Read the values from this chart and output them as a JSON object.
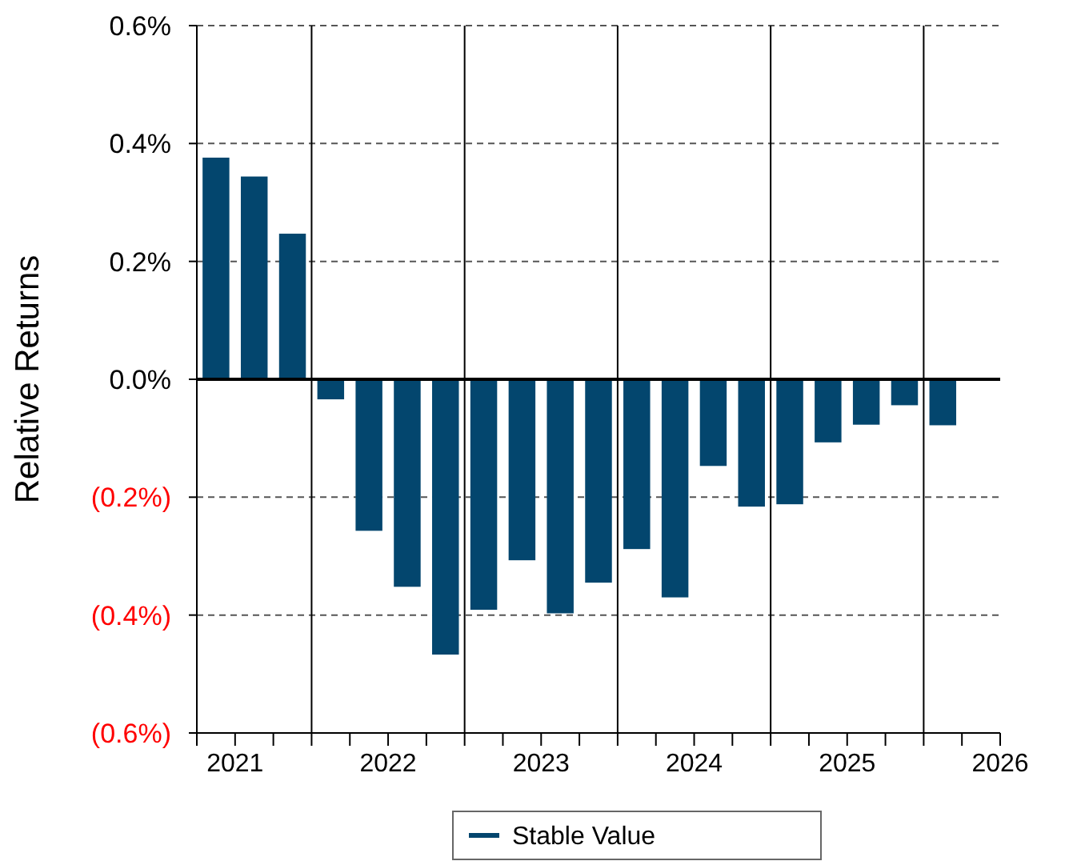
{
  "chart_data": {
    "type": "bar",
    "ylabel": "Relative Returns",
    "x": [
      2021.375,
      2021.625,
      2021.875,
      2022.125,
      2022.375,
      2022.625,
      2022.875,
      2023.125,
      2023.375,
      2023.625,
      2023.875,
      2024.125,
      2024.375,
      2024.625,
      2024.875,
      2025.125,
      2025.375,
      2025.625,
      2025.875,
      2026.125
    ],
    "series": [
      {
        "name": "Stable Value",
        "color": "#03466e",
        "values": [
          0.376,
          0.344,
          0.247,
          -0.034,
          -0.257,
          -0.352,
          -0.467,
          -0.391,
          -0.307,
          -0.397,
          -0.345,
          -0.288,
          -0.37,
          -0.147,
          -0.216,
          -0.212,
          -0.107,
          -0.077,
          -0.044,
          -0.078
        ]
      }
    ],
    "xlim": [
      2021.25,
      2026.5
    ],
    "xticks": [
      {
        "value": 2021.25,
        "label": null
      },
      {
        "value": 2021.5,
        "label": "2021"
      },
      {
        "value": 2021.75,
        "label": null
      },
      {
        "value": 2022,
        "label": null
      },
      {
        "value": 2022.25,
        "label": null
      },
      {
        "value": 2022.5,
        "label": "2022"
      },
      {
        "value": 2022.75,
        "label": null
      },
      {
        "value": 2023,
        "label": null
      },
      {
        "value": 2023.25,
        "label": null
      },
      {
        "value": 2023.5,
        "label": "2023"
      },
      {
        "value": 2023.75,
        "label": null
      },
      {
        "value": 2024,
        "label": null
      },
      {
        "value": 2024.25,
        "label": null
      },
      {
        "value": 2024.5,
        "label": "2024"
      },
      {
        "value": 2024.75,
        "label": null
      },
      {
        "value": 2025,
        "label": null
      },
      {
        "value": 2025.25,
        "label": null
      },
      {
        "value": 2025.5,
        "label": "2025"
      },
      {
        "value": 2025.75,
        "label": null
      },
      {
        "value": 2026,
        "label": null
      },
      {
        "value": 2026.25,
        "label": null
      },
      {
        "value": 2026.5,
        "label": "2026"
      }
    ],
    "ylim": [
      -0.6,
      0.6
    ],
    "yticks": [
      {
        "value": -0.6,
        "label": "(0.6%)"
      },
      {
        "value": -0.4,
        "label": "(0.4%)"
      },
      {
        "value": -0.2,
        "label": "(0.2%)"
      },
      {
        "value": 0,
        "label": "0.0%"
      },
      {
        "value": 0.2,
        "label": "0.2%"
      },
      {
        "value": 0.4,
        "label": "0.4%"
      },
      {
        "value": 0.6,
        "label": "0.6%"
      }
    ],
    "ref_lines": [
      {
        "axis": "x",
        "value": 2022,
        "color": "#000000"
      },
      {
        "axis": "x",
        "value": 2023,
        "color": "#000000"
      },
      {
        "axis": "x",
        "value": 2024,
        "color": "#000000"
      },
      {
        "axis": "x",
        "value": 2025,
        "color": "#000000"
      },
      {
        "axis": "x",
        "value": 2026,
        "color": "#000000"
      }
    ],
    "grid": "y",
    "legend": "bottom"
  }
}
